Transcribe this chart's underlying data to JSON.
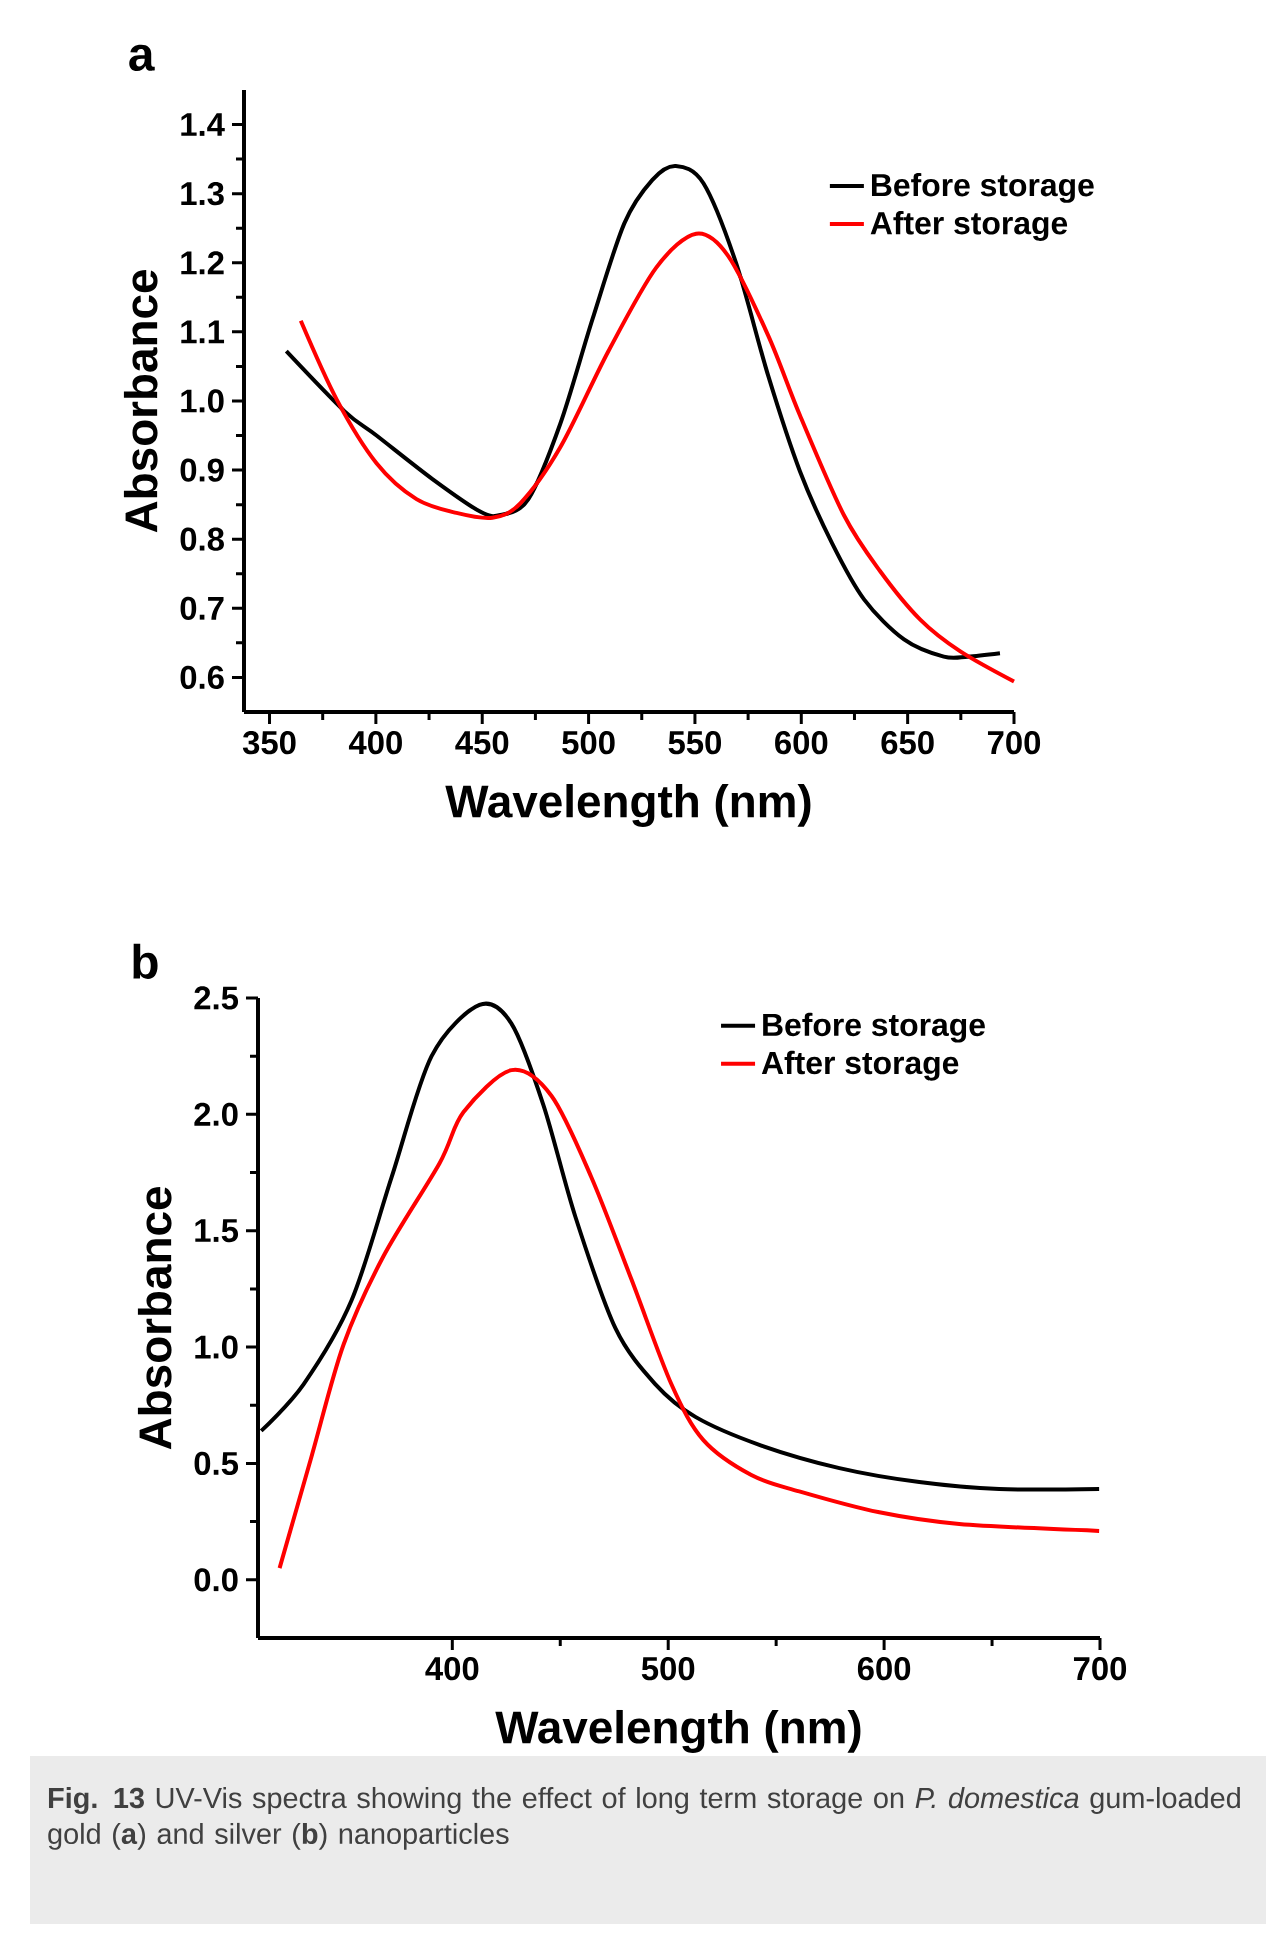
{
  "chart_data": [
    {
      "type": "line",
      "title": "a",
      "xlabel": "Wavelength (nm)",
      "ylabel": "Absorbance",
      "xlim": [
        338,
        700
      ],
      "ylim": [
        0.55,
        1.45
      ],
      "xticks": [
        350,
        400,
        450,
        500,
        550,
        600,
        650,
        700
      ],
      "yticks": [
        0.6,
        0.7,
        0.8,
        0.9,
        {
          "value": 1.0,
          "label": "1.0"
        },
        1.1,
        1.2,
        1.3,
        1.4
      ],
      "legend": "top right",
      "series": [
        {
          "name": "Before storage",
          "color": "#000000",
          "x": [
            357.9,
            385.3,
            400.3,
            426.6,
            449.0,
            458.6,
            471.7,
            486.7,
            501.8,
            516.8,
            530.0,
            541.0,
            554.0,
            569.4,
            584.4,
            599.4,
            614.5,
            629.5,
            648.3,
            667.0,
            678.3,
            693.4
          ],
          "values": [
            1.072,
            0.985,
            0.95,
            0.887,
            0.84,
            0.835,
            0.858,
            0.967,
            1.118,
            1.257,
            1.32,
            1.34,
            1.315,
            1.199,
            1.037,
            0.898,
            0.794,
            0.713,
            0.655,
            0.63,
            0.63,
            0.635
          ]
        },
        {
          "name": "After storage",
          "color": "#ff0000",
          "x": [
            364.7,
            381.6,
            400.3,
            419.1,
            437.9,
            454.8,
            467.9,
            486.7,
            509.3,
            531.8,
            550.6,
            565.6,
            584.4,
            599.4,
            620.0,
            637.0,
            655.8,
            674.6,
            700.0
          ],
          "values": [
            1.116,
            1.002,
            0.91,
            0.858,
            0.838,
            0.831,
            0.852,
            0.933,
            1.072,
            1.193,
            1.242,
            1.21,
            1.095,
            0.979,
            0.835,
            0.754,
            0.684,
            0.638,
            0.594
          ]
        }
      ]
    },
    {
      "type": "line",
      "title": "b",
      "xlabel": "Wavelength (nm)",
      "ylabel": "Absorbance",
      "xlim": [
        310,
        700
      ],
      "ylim": [
        -0.25,
        2.5
      ],
      "xticks": [
        400,
        500,
        600,
        700
      ],
      "yticks": [
        {
          "value": 0,
          "label": "0.0"
        },
        0.5,
        {
          "value": 1,
          "label": "1.0"
        },
        1.5,
        {
          "value": 2,
          "label": "2.0"
        },
        2.5
      ],
      "legend": "top right",
      "series": [
        {
          "name": "Before storage",
          "color": "#000000",
          "x": [
            311.5,
            331.1,
            353.3,
            371.9,
            390.4,
            412.6,
            427.4,
            442.2,
            457.0,
            475.6,
            494.1,
            512.6,
            542.2,
            579.3,
            616.3,
            653.3,
            699.6
          ],
          "values": [
            0.64,
            0.84,
            1.2,
            1.73,
            2.25,
            2.47,
            2.39,
            2.04,
            1.56,
            1.08,
            0.84,
            0.7,
            0.58,
            0.48,
            0.42,
            0.39,
            0.39
          ]
        },
        {
          "name": "After storage",
          "color": "#ff0000",
          "x": [
            320.0,
            334.8,
            349.6,
            368.1,
            394.1,
            405.2,
            427.4,
            445.9,
            464.4,
            483.0,
            501.5,
            516.3,
            538.5,
            560.7,
            597.8,
            634.8,
            699.6
          ],
          "values": [
            0.05,
            0.53,
            1.01,
            1.39,
            1.79,
            2.01,
            2.19,
            2.08,
            1.73,
            1.29,
            0.84,
            0.6,
            0.45,
            0.38,
            0.29,
            0.24,
            0.21
          ]
        }
      ],
      "annotations": [
        "**Fig. 13** UV-Vis spectra showing the effect of long term storage on *P. domestica* gum-loaded gold (**a**) and silver (**b**) nanoparticles"
      ]
    }
  ]
}
